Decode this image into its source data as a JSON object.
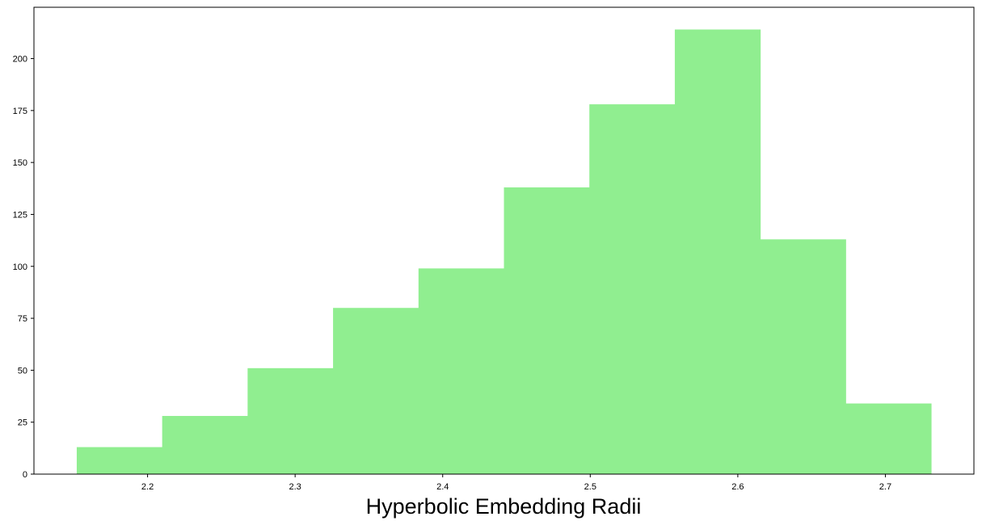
{
  "chart_data": {
    "type": "bar",
    "title": "",
    "xlabel": "Hyperbolic Embedding Radii",
    "ylabel": "",
    "bin_edges": [
      2.152,
      2.2099,
      2.2678,
      2.3257,
      2.3836,
      2.4415,
      2.4994,
      2.5573,
      2.6152,
      2.6731,
      2.731
    ],
    "values": [
      13,
      28,
      51,
      80,
      99,
      138,
      178,
      214,
      113,
      34
    ],
    "bar_color": "#90ee90",
    "xlim": [
      2.123,
      2.76
    ],
    "ylim": [
      0,
      224.7
    ],
    "x_ticks": [
      2.2,
      2.3,
      2.4,
      2.5,
      2.6,
      2.7
    ],
    "x_tick_labels": [
      "2.2",
      "2.3",
      "2.4",
      "2.5",
      "2.6",
      "2.7"
    ],
    "y_ticks": [
      0,
      25,
      50,
      75,
      100,
      125,
      150,
      175,
      200
    ],
    "y_tick_labels": [
      "0",
      "25",
      "50",
      "75",
      "100",
      "125",
      "150",
      "175",
      "200"
    ],
    "grid": false,
    "legend": "none"
  }
}
